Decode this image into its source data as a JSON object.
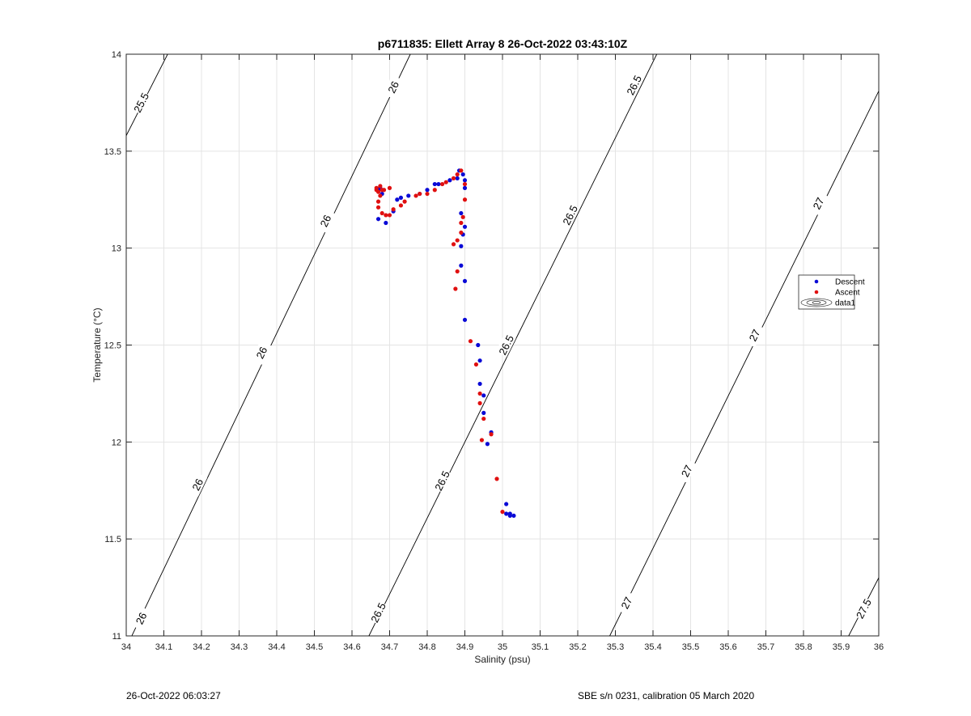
{
  "footer": {
    "left": "26-Oct-2022 06:03:27",
    "right": "SBE s/n 0231, calibration 05 March 2020"
  },
  "colors": {
    "descent": "#0a0ad6",
    "ascent": "#e01010",
    "contour": "#000000",
    "grid": "#e4e4e4"
  },
  "chart_data": {
    "type": "scatter",
    "title": "p6711835: Ellett Array 8 26-Oct-2022 03:43:10Z",
    "xlabel": "Salinity (psu)",
    "ylabel": "Temperature (°C)",
    "xlim": [
      34,
      36
    ],
    "ylim": [
      11,
      14
    ],
    "xticks": [
      34,
      34.1,
      34.2,
      34.3,
      34.4,
      34.5,
      34.6,
      34.7,
      34.8,
      34.9,
      35,
      35.1,
      35.2,
      35.3,
      35.4,
      35.5,
      35.6,
      35.7,
      35.8,
      35.9,
      36
    ],
    "xtick_labels": [
      "34",
      "34.1",
      "34.2",
      "34.3",
      "34.4",
      "34.5",
      "34.6",
      "34.7",
      "34.8",
      "34.9",
      "35",
      "35.1",
      "35.2",
      "35.3",
      "35.4",
      "35.5",
      "35.6",
      "35.7",
      "35.8",
      "35.9",
      "36"
    ],
    "yticks": [
      11,
      11.5,
      12,
      12.5,
      13,
      13.5,
      14
    ],
    "ytick_labels": [
      "11",
      "11.5",
      "12",
      "12.5",
      "13",
      "13.5",
      "14"
    ],
    "grid": true,
    "legend_position": "right",
    "legend": [
      "Descent",
      "Ascent",
      "data1"
    ],
    "contours": [
      {
        "level": "25.5",
        "points": [
          [
            34,
            13.58
          ],
          [
            34.11,
            14
          ]
        ],
        "labels": [
          [
            34.04,
            13.75
          ]
        ]
      },
      {
        "level": "26",
        "points": [
          [
            34.0,
            10.94
          ],
          [
            34.755,
            14
          ]
        ],
        "labels": [
          [
            34.04,
            11.09
          ],
          [
            34.19,
            11.78
          ],
          [
            34.36,
            12.46
          ],
          [
            34.53,
            13.14
          ],
          [
            34.71,
            13.83
          ]
        ]
      },
      {
        "level": "26.5",
        "points": [
          [
            34.645,
            11
          ],
          [
            35.41,
            14
          ]
        ],
        "labels": [
          [
            34.67,
            11.12
          ],
          [
            34.84,
            11.8
          ],
          [
            35.01,
            12.5
          ],
          [
            35.18,
            13.17
          ],
          [
            35.35,
            13.84
          ]
        ]
      },
      {
        "level": "27",
        "points": [
          [
            35.285,
            11
          ],
          [
            36,
            13.81
          ]
        ],
        "labels": [
          [
            35.33,
            11.17
          ],
          [
            35.49,
            11.85
          ],
          [
            35.67,
            12.55
          ],
          [
            35.84,
            13.23
          ]
        ]
      },
      {
        "level": "27.5",
        "points": [
          [
            35.92,
            11
          ],
          [
            36,
            11.3
          ]
        ],
        "labels": [
          [
            35.96,
            11.14
          ]
        ]
      }
    ],
    "series": [
      {
        "name": "Descent",
        "points": [
          [
            35.03,
            11.62
          ],
          [
            35.02,
            11.62
          ],
          [
            35.01,
            11.63
          ],
          [
            35.01,
            11.68
          ],
          [
            35.02,
            11.63
          ],
          [
            34.96,
            11.99
          ],
          [
            34.97,
            12.05
          ],
          [
            34.95,
            12.15
          ],
          [
            34.95,
            12.24
          ],
          [
            34.94,
            12.3
          ],
          [
            34.94,
            12.42
          ],
          [
            34.935,
            12.5
          ],
          [
            34.9,
            12.63
          ],
          [
            34.9,
            12.83
          ],
          [
            34.89,
            12.91
          ],
          [
            34.89,
            13.01
          ],
          [
            34.895,
            13.07
          ],
          [
            34.9,
            13.11
          ],
          [
            34.89,
            13.18
          ],
          [
            34.9,
            13.31
          ],
          [
            34.9,
            13.35
          ],
          [
            34.895,
            13.38
          ],
          [
            34.885,
            13.4
          ],
          [
            34.88,
            13.36
          ],
          [
            34.86,
            13.35
          ],
          [
            34.83,
            13.33
          ],
          [
            34.82,
            13.33
          ],
          [
            34.8,
            13.3
          ],
          [
            34.78,
            13.28
          ],
          [
            34.75,
            13.27
          ],
          [
            34.73,
            13.26
          ],
          [
            34.72,
            13.25
          ],
          [
            34.71,
            13.19
          ],
          [
            34.69,
            13.13
          ],
          [
            34.67,
            13.15
          ],
          [
            34.68,
            13.28
          ],
          [
            34.67,
            13.3
          ],
          [
            34.675,
            13.31
          ]
        ]
      },
      {
        "name": "Ascent",
        "points": [
          [
            35.0,
            11.64
          ],
          [
            34.985,
            11.81
          ],
          [
            34.97,
            12.04
          ],
          [
            34.945,
            12.01
          ],
          [
            34.95,
            12.12
          ],
          [
            34.94,
            12.2
          ],
          [
            34.94,
            12.25
          ],
          [
            34.93,
            12.4
          ],
          [
            34.915,
            12.52
          ],
          [
            34.875,
            12.79
          ],
          [
            34.88,
            12.88
          ],
          [
            34.87,
            13.02
          ],
          [
            34.88,
            13.04
          ],
          [
            34.89,
            13.08
          ],
          [
            34.89,
            13.13
          ],
          [
            34.895,
            13.16
          ],
          [
            34.9,
            13.25
          ],
          [
            34.9,
            13.33
          ],
          [
            34.89,
            13.4
          ],
          [
            34.88,
            13.38
          ],
          [
            34.87,
            13.36
          ],
          [
            34.85,
            13.34
          ],
          [
            34.84,
            13.33
          ],
          [
            34.82,
            13.3
          ],
          [
            34.8,
            13.28
          ],
          [
            34.78,
            13.28
          ],
          [
            34.77,
            13.27
          ],
          [
            34.74,
            13.24
          ],
          [
            34.73,
            13.22
          ],
          [
            34.71,
            13.2
          ],
          [
            34.7,
            13.17
          ],
          [
            34.69,
            13.17
          ],
          [
            34.68,
            13.18
          ],
          [
            34.67,
            13.21
          ],
          [
            34.67,
            13.24
          ],
          [
            34.675,
            13.27
          ],
          [
            34.68,
            13.3
          ],
          [
            34.685,
            13.3
          ],
          [
            34.7,
            13.31
          ],
          [
            34.665,
            13.31
          ],
          [
            34.67,
            13.29
          ],
          [
            34.665,
            13.3
          ],
          [
            34.675,
            13.32
          ]
        ]
      }
    ]
  }
}
